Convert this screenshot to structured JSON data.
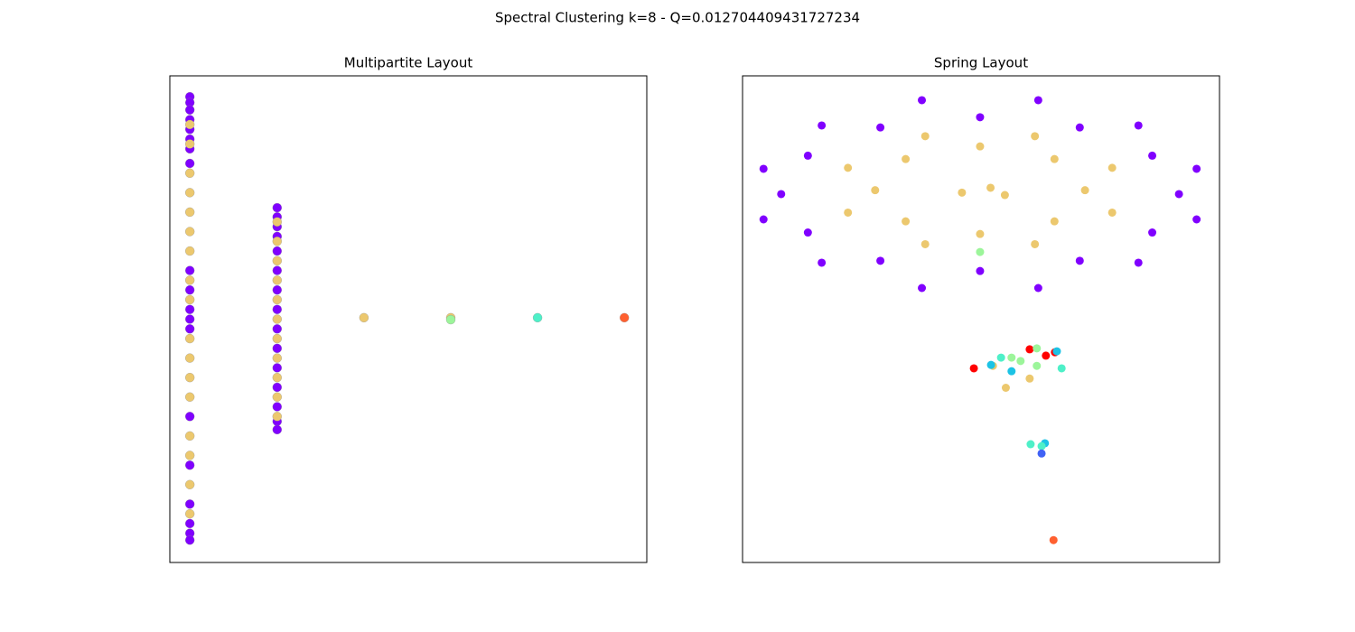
{
  "title": "Spectral Clustering k=8 - Q=0.012704409431727234",
  "chart_data": [
    {
      "type": "scatter",
      "title": "Multipartite Layout",
      "xlim": [
        0,
        100
      ],
      "ylim": [
        0,
        100
      ],
      "series": [
        {
          "color": "#8000ff",
          "x": [
            4.2,
            4.2,
            4.2,
            4.2,
            4.2,
            4.2,
            4.2,
            4.2,
            4.2,
            4.2,
            4.2,
            4.2,
            4.2,
            4.2,
            4.2,
            4.2,
            4.2,
            4.2,
            4.2,
            22.5,
            22.5,
            22.5,
            22.5,
            22.5,
            22.5,
            22.5,
            22.5,
            22.5,
            22.5,
            22.5,
            22.5,
            22.5,
            22.5,
            22.5
          ],
          "y": [
            95.7,
            94.5,
            93,
            91,
            89,
            87,
            85,
            82,
            60,
            56,
            52,
            50,
            48,
            30,
            20,
            12,
            8,
            6,
            4.6,
            72.9,
            71,
            69,
            67,
            64,
            60,
            56,
            52,
            48,
            44,
            40,
            36,
            32,
            29,
            27.3
          ]
        },
        {
          "color": "#ecc86e",
          "x": [
            4.2,
            4.2,
            4.2,
            4.2,
            4.2,
            4.2,
            4.2,
            4.2,
            4.2,
            4.2,
            4.2,
            4.2,
            4.2,
            4.2,
            4.2,
            4.2,
            4.2,
            22.5,
            22.5,
            22.5,
            22.5,
            22.5,
            22.5,
            22.5,
            22.5,
            22.5,
            22.5,
            22.5,
            40.7,
            58.9
          ],
          "y": [
            90,
            86,
            80,
            76,
            72,
            68,
            64,
            58,
            54,
            46,
            42,
            38,
            34,
            26,
            22,
            16,
            10,
            70,
            66,
            62,
            58,
            54,
            50,
            46,
            42,
            38,
            34,
            30,
            50.3,
            50.3
          ]
        },
        {
          "color": "#9cf59a",
          "x": [
            58.9
          ],
          "y": [
            49.9
          ]
        },
        {
          "color": "#4ef0c8",
          "x": [
            77.1
          ],
          "y": [
            50.3
          ]
        },
        {
          "color": "#ff6030",
          "x": [
            95.3
          ],
          "y": [
            50.3
          ]
        }
      ]
    },
    {
      "type": "scatter",
      "title": "Spring Layout",
      "xlim": [
        0,
        100
      ],
      "ylim": [
        0,
        100
      ],
      "series": [
        {
          "color": "#8000ff",
          "x": [
            91.5,
            85.9,
            70.7,
            49.8,
            28.9,
            13.7,
            8.1,
            13.7,
            28.9,
            49.8,
            70.7,
            85.9,
            95.2,
            83.0,
            62.0,
            37.6,
            16.6,
            4.4,
            4.4,
            16.6,
            37.6,
            62.0,
            83.0,
            95.2
          ],
          "y": [
            75.7,
            83.6,
            89.4,
            91.5,
            89.4,
            83.6,
            75.7,
            67.8,
            62.0,
            59.9,
            62.0,
            67.8,
            80.9,
            89.8,
            95.0,
            95.0,
            89.8,
            80.9,
            70.5,
            61.6,
            56.4,
            56.4,
            61.6,
            70.5
          ]
        },
        {
          "color": "#ecc86e",
          "x": [
            71.8,
            65.4,
            49.8,
            34.2,
            27.8,
            34.2,
            49.8,
            65.4,
            77.5,
            61.3,
            38.3,
            22.1,
            22.1,
            38.3,
            61.3,
            77.5,
            52,
            46,
            55,
            55.2,
            60.2,
            52.5
          ],
          "y": [
            76.5,
            82.9,
            85.5,
            82.9,
            76.5,
            70.1,
            67.5,
            70.1,
            81.1,
            87.6,
            87.6,
            81.1,
            71.9,
            65.4,
            65.4,
            71.9,
            77,
            76,
            75.5,
            35.9,
            37.8,
            40.4
          ]
        },
        {
          "color": "#ff0000",
          "x": [
            48.5,
            60.2,
            63.6,
            65.5
          ],
          "y": [
            39.9,
            43.8,
            42.5,
            43.2
          ]
        },
        {
          "color": "#1cc3e5",
          "x": [
            52.1,
            56.4,
            65.9,
            63.4
          ],
          "y": [
            40.6,
            39.3,
            43.4,
            24.5
          ]
        },
        {
          "color": "#4ef0c8",
          "x": [
            54.2,
            66.9,
            60.4,
            62.7
          ],
          "y": [
            42.1,
            39.9,
            24.3,
            23.9
          ]
        },
        {
          "color": "#9cf59a",
          "x": [
            49.8,
            56.4,
            58.3,
            61.7,
            61.7
          ],
          "y": [
            63.8,
            42.1,
            41.4,
            40.4,
            44.0
          ]
        },
        {
          "color": "#4062f5",
          "x": [
            62.7
          ],
          "y": [
            22.4
          ]
        },
        {
          "color": "#ff6030",
          "x": [
            65.2
          ],
          "y": [
            4.6
          ]
        }
      ]
    }
  ]
}
